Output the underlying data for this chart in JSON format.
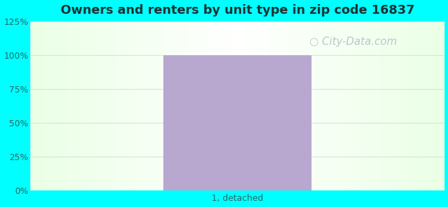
{
  "title": "Owners and renters by unit type in zip code 16837",
  "title_fontsize": 13,
  "title_fontweight": "bold",
  "title_color": "#1a3333",
  "categories": [
    "1, detached"
  ],
  "values": [
    100
  ],
  "bar_color": "#b8a8d0",
  "bar_width": 0.5,
  "ylim": [
    0,
    125
  ],
  "yticks": [
    0,
    25,
    50,
    75,
    100,
    125
  ],
  "yticklabels": [
    "0%",
    "25%",
    "50%",
    "75%",
    "100%",
    "125%"
  ],
  "watermark_text": "City-Data.com",
  "watermark_color": "#b0bcc8",
  "watermark_fontsize": 11,
  "bg_color": "#00ffff",
  "grid_color": "#d0e8d8",
  "tick_label_color": "#2a6666",
  "xlabel_color": "#2a6666",
  "xlabel_fontsize": 9
}
